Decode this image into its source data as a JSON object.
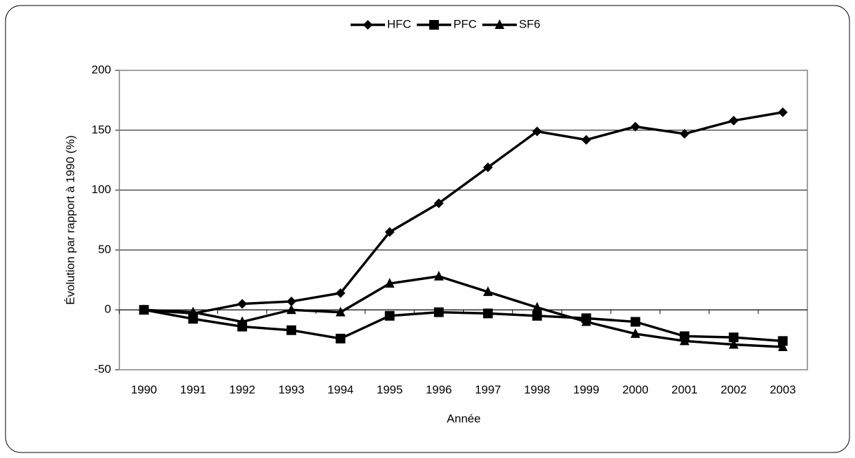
{
  "chart_data": {
    "type": "line",
    "xlabel": "Année",
    "ylabel": "Évolution par rapport à 1990 (%)",
    "categories": [
      "1990",
      "1991",
      "1992",
      "1993",
      "1994",
      "1995",
      "1996",
      "1997",
      "1998",
      "1999",
      "2000",
      "2001",
      "2002",
      "2003"
    ],
    "series": [
      {
        "name": "HFC",
        "color": "#000000",
        "marker": "diamond",
        "values": [
          0,
          -3,
          5,
          7,
          14,
          65,
          89,
          119,
          149,
          142,
          153,
          147,
          158,
          165
        ]
      },
      {
        "name": "PFC",
        "color": "#000000",
        "marker": "square",
        "values": [
          0,
          -7.5,
          -14,
          -17,
          -24,
          -5,
          -2,
          -3,
          -5,
          -7,
          -10,
          -22,
          -23,
          -26
        ]
      },
      {
        "name": "SF6",
        "color": "#000000",
        "marker": "triangle",
        "values": [
          0,
          -2,
          -10,
          0,
          -2,
          22,
          28,
          15,
          2,
          -10,
          -20,
          -26,
          -29,
          -31
        ]
      }
    ],
    "ylim": [
      -50,
      200
    ],
    "yticks": [
      -50,
      0,
      50,
      100,
      150,
      200
    ],
    "grid": true,
    "legend": "top"
  }
}
